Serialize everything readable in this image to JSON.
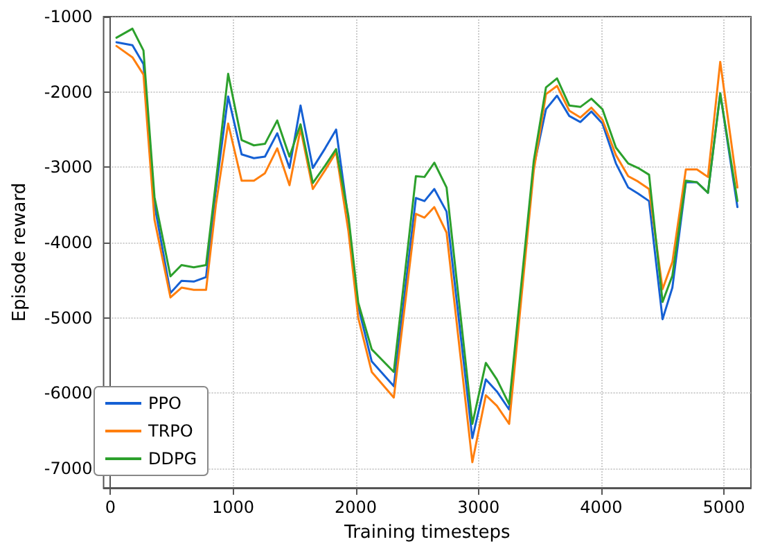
{
  "chart_data": {
    "type": "line",
    "xlabel": "Training timesteps",
    "ylabel": "Episode reward",
    "x": [
      50,
      180,
      270,
      360,
      490,
      580,
      680,
      780,
      860,
      960,
      1070,
      1170,
      1260,
      1360,
      1460,
      1550,
      1650,
      1750,
      1840,
      1940,
      2020,
      2130,
      2310,
      2490,
      2560,
      2640,
      2740,
      2950,
      3060,
      3150,
      3250,
      3450,
      3550,
      3640,
      3740,
      3830,
      3920,
      4010,
      4120,
      4220,
      4300,
      4390,
      4500,
      4580,
      4690,
      4780,
      4870,
      4970,
      5110
    ],
    "series": [
      {
        "name": "PPO",
        "color": "#1560d4",
        "values": [
          -1340,
          -1380,
          -1630,
          -3500,
          -4670,
          -4510,
          -4520,
          -4460,
          -3300,
          -2060,
          -2830,
          -2880,
          -2860,
          -2550,
          -3010,
          -2180,
          -3010,
          -2750,
          -2500,
          -3700,
          -4850,
          -5580,
          -5910,
          -3410,
          -3450,
          -3290,
          -3590,
          -6600,
          -5820,
          -5980,
          -6220,
          -3000,
          -2230,
          -2050,
          -2320,
          -2400,
          -2260,
          -2420,
          -2950,
          -3270,
          -3350,
          -3450,
          -5020,
          -4600,
          -3200,
          -3200,
          -3340,
          -2020,
          -3530
        ]
      },
      {
        "name": "TRPO",
        "color": "#ff7f0e",
        "values": [
          -1390,
          -1540,
          -1770,
          -3700,
          -4730,
          -4600,
          -4630,
          -4630,
          -3500,
          -2420,
          -3180,
          -3180,
          -3080,
          -2750,
          -3240,
          -2490,
          -3290,
          -3040,
          -2800,
          -3850,
          -5000,
          -5720,
          -6060,
          -3620,
          -3670,
          -3530,
          -3870,
          -6920,
          -6030,
          -6170,
          -6410,
          -3050,
          -2030,
          -1920,
          -2250,
          -2340,
          -2210,
          -2370,
          -2840,
          -3120,
          -3190,
          -3290,
          -4620,
          -4260,
          -3030,
          -3030,
          -3130,
          -1600,
          -3270
        ]
      },
      {
        "name": "DDPG",
        "color": "#2ca02c",
        "values": [
          -1280,
          -1160,
          -1450,
          -3400,
          -4450,
          -4300,
          -4330,
          -4300,
          -3200,
          -1760,
          -2640,
          -2710,
          -2690,
          -2380,
          -2860,
          -2430,
          -3210,
          -2980,
          -2760,
          -3650,
          -4800,
          -5420,
          -5720,
          -3120,
          -3130,
          -2940,
          -3270,
          -6410,
          -5600,
          -5820,
          -6150,
          -2920,
          -1940,
          -1820,
          -2180,
          -2200,
          -2090,
          -2230,
          -2740,
          -2950,
          -3010,
          -3100,
          -4790,
          -4440,
          -3180,
          -3200,
          -3340,
          -2020,
          -3450
        ]
      }
    ],
    "xlim": [
      -55,
      5220
    ],
    "xticks": [
      0,
      1000,
      2000,
      3000,
      4000,
      5000
    ],
    "ylim": [
      -7260,
      -1000
    ],
    "yticks": [
      -7000,
      -6000,
      -5000,
      -4000,
      -3000,
      -2000,
      -1000
    ],
    "grid": true,
    "legend": "bottom left",
    "marker": "none",
    "line_style": "solid"
  }
}
